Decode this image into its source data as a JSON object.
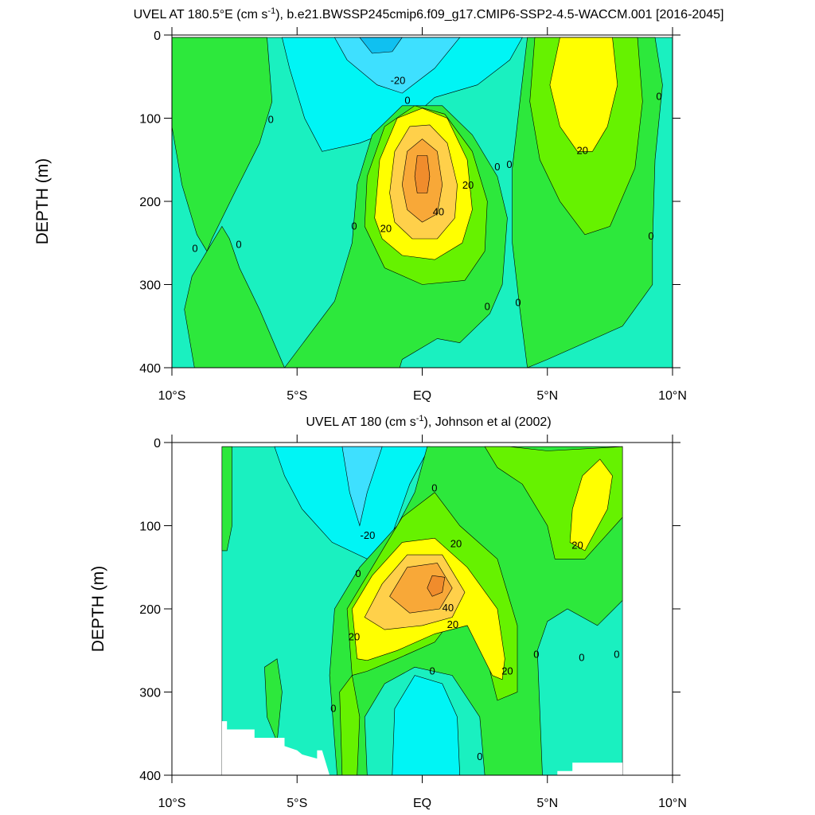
{
  "chart_data": [
    {
      "type": "contour",
      "title": [
        "UVEL AT 180.5°E (cm s",
        "-1",
        "), b.e21.BWSSP245cmip6.f09_g17.CMIP6-SSP2-4.5-WACCM.001 [2016-2045]"
      ],
      "ylabel": "DEPTH (m)",
      "xlim": [
        -10,
        10
      ],
      "ylim": [
        0,
        400
      ],
      "y_reversed": true,
      "xticks": [
        {
          "value": -10,
          "label": "10°S"
        },
        {
          "value": -5,
          "label": "5°S"
        },
        {
          "value": 0,
          "label": "EQ"
        },
        {
          "value": 5,
          "label": "5°N"
        },
        {
          "value": 10,
          "label": "10°N"
        }
      ],
      "yticks": [
        0,
        100,
        200,
        300,
        400
      ],
      "regions": [
        {
          "color": "#1af0c0",
          "lat": [
            -10,
            10,
            10,
            -10
          ],
          "depth": [
            3,
            3,
            400,
            400
          ]
        },
        {
          "color": "#2de83c",
          "lat": [
            -10,
            -6.2,
            -6.0,
            -6.5,
            -7.5,
            -8.4,
            -8.6,
            -9.0,
            -9.6,
            -10
          ],
          "depth": [
            3,
            3,
            80,
            130,
            190,
            245,
            260,
            240,
            180,
            110
          ]
        },
        {
          "color": "#2de83c",
          "lat": [
            -8.6,
            -8.0,
            -7.7,
            -7.3,
            -6.5,
            -5.5,
            -9.1,
            -9.5,
            -9.2
          ],
          "depth": [
            260,
            230,
            245,
            280,
            330,
            400,
            400,
            330,
            290
          ]
        },
        {
          "color": "#00f5f5",
          "lat": [
            -5.6,
            4.0,
            3.5,
            2.2,
            0.5,
            -0.8,
            -2.5,
            -4.0,
            -4.7,
            -5.3
          ],
          "depth": [
            3,
            3,
            30,
            60,
            75,
            110,
            130,
            140,
            100,
            40
          ]
        },
        {
          "color": "#3ee0ff",
          "lat": [
            -3.5,
            1.5,
            0.5,
            -0.8,
            -1.8,
            -3.0
          ],
          "depth": [
            3,
            3,
            40,
            70,
            60,
            30
          ]
        },
        {
          "color": "#10c0f0",
          "lat": [
            -2.5,
            -0.8,
            -1.2,
            -2.0
          ],
          "depth": [
            3,
            3,
            20,
            22
          ]
        },
        {
          "color": "#2de83c",
          "lat": [
            -5.5,
            -3.5,
            -2.8,
            -2.6,
            -2.0,
            -0.8,
            0.8,
            2.0,
            3.0,
            3.4,
            3.2,
            2.7,
            1.5,
            0.6,
            -0.8,
            -0.9
          ],
          "depth": [
            400,
            320,
            250,
            180,
            120,
            85,
            85,
            120,
            170,
            220,
            300,
            335,
            370,
            365,
            390,
            400
          ]
        },
        {
          "color": "#2de83c",
          "lat": [
            4.2,
            9.3,
            9.6,
            9.3,
            9.2,
            9.2,
            8.0,
            5.0,
            4.2,
            3.9,
            3.6,
            3.6,
            3.9
          ],
          "depth": [
            3,
            3,
            60,
            150,
            250,
            300,
            350,
            390,
            400,
            330,
            250,
            160,
            80
          ]
        },
        {
          "color": "#66f200",
          "lat": [
            4.5,
            8.6,
            8.8,
            8.5,
            7.5,
            6.5,
            5.5,
            4.7,
            4.3
          ],
          "depth": [
            3,
            3,
            80,
            160,
            230,
            240,
            200,
            150,
            80
          ]
        },
        {
          "color": "#ffff00",
          "lat": [
            5.5,
            7.6,
            7.8,
            7.4,
            6.8,
            6.2,
            5.5,
            5.1
          ],
          "depth": [
            3,
            3,
            60,
            110,
            140,
            140,
            110,
            60
          ]
        },
        {
          "color": "#66f200",
          "lat": [
            -2.3,
            -2.2,
            -1.5,
            -0.3,
            0.9,
            2.0,
            2.6,
            2.5,
            1.7,
            0,
            -1.5
          ],
          "depth": [
            230,
            170,
            110,
            85,
            95,
            140,
            200,
            260,
            295,
            300,
            280
          ]
        },
        {
          "color": "#ffff00",
          "lat": [
            -1.9,
            -1.7,
            -1.0,
            0,
            1.0,
            1.8,
            2.0,
            1.6,
            0.5,
            -0.8,
            -1.6
          ],
          "depth": [
            220,
            150,
            100,
            88,
            100,
            150,
            210,
            250,
            270,
            265,
            245
          ]
        },
        {
          "color": "#ffd04a",
          "lat": [
            -1.3,
            -1.1,
            -0.5,
            0.3,
            1.0,
            1.4,
            1.3,
            0.6,
            -0.4,
            -1.1
          ],
          "depth": [
            190,
            140,
            110,
            108,
            130,
            180,
            220,
            245,
            245,
            225
          ]
        },
        {
          "color": "#f8a838",
          "lat": [
            -0.8,
            -0.6,
            0,
            0.6,
            0.8,
            0.6,
            0,
            -0.6
          ],
          "depth": [
            180,
            140,
            125,
            140,
            180,
            215,
            225,
            210
          ]
        },
        {
          "color": "#f08c2c",
          "lat": [
            -0.3,
            -0.2,
            0.2,
            0.3,
            0.2,
            -0.2
          ],
          "depth": [
            170,
            145,
            145,
            170,
            190,
            190
          ]
        }
      ],
      "contour_labels": [
        {
          "value": 0,
          "x": -9.08,
          "y": 257
        },
        {
          "value": 0,
          "x": -7.33,
          "y": 252
        },
        {
          "value": 0,
          "x": -6.05,
          "y": 102
        },
        {
          "value": 0,
          "x": -2.72,
          "y": 230
        },
        {
          "value": 20,
          "x": -1.45,
          "y": 233
        },
        {
          "value": 40,
          "x": 0.65,
          "y": 213
        },
        {
          "value": 20,
          "x": 1.83,
          "y": 181
        },
        {
          "value": 0,
          "x": -0.59,
          "y": 79
        },
        {
          "value": -20,
          "x": -0.97,
          "y": 55
        },
        {
          "value": 0,
          "x": 3.0,
          "y": 159
        },
        {
          "value": 0,
          "x": 3.48,
          "y": 156
        },
        {
          "value": 20,
          "x": 6.4,
          "y": 139
        },
        {
          "value": 0,
          "x": 9.46,
          "y": 74
        },
        {
          "value": 0,
          "x": 9.14,
          "y": 242
        },
        {
          "value": 0,
          "x": 2.6,
          "y": 327
        },
        {
          "value": 0,
          "x": 3.83,
          "y": 322
        }
      ]
    },
    {
      "type": "contour",
      "title": [
        "UVEL AT 180 (cm s",
        "-1",
        "), Johnson et al (2002)"
      ],
      "ylabel": "DEPTH (m)",
      "xlim": [
        -10,
        10
      ],
      "ylim": [
        0,
        400
      ],
      "y_reversed": true,
      "xticks": [
        {
          "value": -10,
          "label": "10°S"
        },
        {
          "value": -5,
          "label": "5°S"
        },
        {
          "value": 0,
          "label": "EQ"
        },
        {
          "value": 5,
          "label": "5°N"
        },
        {
          "value": 10,
          "label": "10°N"
        }
      ],
      "yticks": [
        0,
        100,
        200,
        300,
        400
      ],
      "regions": [
        {
          "color": "#1af0c0",
          "lat": [
            -8,
            8,
            8,
            -8
          ],
          "depth": [
            5,
            5,
            400,
            400
          ]
        },
        {
          "color": "#00f5f5",
          "lat": [
            -5.9,
            0.3,
            -0.5,
            -1.2,
            -2.2,
            -3.6,
            -4.8,
            -5.5
          ],
          "depth": [
            5,
            5,
            50,
            110,
            140,
            120,
            80,
            40
          ]
        },
        {
          "color": "#3ee0ff",
          "lat": [
            -3.2,
            -1.6,
            -2.2,
            -2.5,
            -2.9
          ],
          "depth": [
            5,
            5,
            60,
            100,
            60
          ]
        },
        {
          "color": "#2de83c",
          "lat": [
            -8,
            -7.6,
            -7.6,
            -7.8,
            -8
          ],
          "depth": [
            5,
            5,
            100,
            130,
            130
          ]
        },
        {
          "color": "#2de83c",
          "lat": [
            -6.2,
            -6.3,
            -5.8,
            -5.6,
            -5.8
          ],
          "depth": [
            330,
            270,
            260,
            300,
            360
          ]
        },
        {
          "color": "#2de83c",
          "lat": [
            0.2,
            8,
            8,
            7,
            5.8,
            5,
            4.6,
            4.8,
            -3.4,
            -3.7,
            -3.5,
            -2.5,
            -1,
            -0.3
          ],
          "depth": [
            5,
            5,
            190,
            220,
            200,
            215,
            250,
            400,
            400,
            280,
            200,
            150,
            100,
            60
          ]
        },
        {
          "color": "#1af0c0",
          "lat": [
            -2.2,
            -2.3,
            -1.5,
            -0.3,
            1.2,
            2.3,
            2.5
          ],
          "depth": [
            400,
            330,
            290,
            270,
            280,
            330,
            400
          ]
        },
        {
          "color": "#00f5f5",
          "lat": [
            -1.2,
            -1.1,
            -0.3,
            0.8,
            1.4,
            1.5
          ],
          "depth": [
            400,
            320,
            280,
            290,
            330,
            400
          ]
        },
        {
          "color": "#66f200",
          "lat": [
            -3.2,
            -3.3,
            -2.8,
            -2.5,
            -2.6
          ],
          "depth": [
            400,
            300,
            280,
            330,
            400
          ]
        },
        {
          "color": "#66f200",
          "lat": [
            -2.8,
            -3,
            -2,
            -0.8,
            0.5,
            1.5,
            3,
            3.8,
            3.8,
            3,
            2.5,
            1.5,
            0.5,
            -1,
            -2.2
          ],
          "depth": [
            280,
            200,
            150,
            90,
            60,
            100,
            140,
            220,
            300,
            310,
            250,
            200,
            240,
            260,
            275
          ]
        },
        {
          "color": "#66f200",
          "lat": [
            2.5,
            3.5,
            5,
            8,
            8,
            6.5,
            5.3,
            5,
            4,
            3
          ],
          "depth": [
            5,
            5,
            10,
            5,
            90,
            140,
            140,
            100,
            50,
            30
          ]
        },
        {
          "color": "#ffff00",
          "lat": [
            6,
            6.4,
            7.1,
            7.6,
            7.4,
            6.5,
            5.9
          ],
          "depth": [
            80,
            40,
            20,
            40,
            80,
            130,
            120
          ]
        },
        {
          "color": "#ffff00",
          "lat": [
            -2.6,
            -2.8,
            -2,
            -0.8,
            0.5,
            1.8,
            3,
            3.3,
            3.2,
            2.8,
            1.8,
            0.5,
            -1,
            -2.2
          ],
          "depth": [
            260,
            200,
            160,
            120,
            115,
            150,
            200,
            260,
            285,
            280,
            220,
            230,
            250,
            262
          ]
        },
        {
          "color": "#ffd04a",
          "lat": [
            -2.3,
            -1.6,
            -0.6,
            0.8,
            1.7,
            1.2,
            0,
            -1.5
          ],
          "depth": [
            210,
            170,
            135,
            135,
            180,
            210,
            220,
            225
          ]
        },
        {
          "color": "#f8a838",
          "lat": [
            -1.3,
            -0.6,
            0.6,
            1.2,
            0.7,
            -0.5
          ],
          "depth": [
            185,
            150,
            145,
            175,
            200,
            205
          ]
        },
        {
          "color": "#f08c2c",
          "lat": [
            0.2,
            0.4,
            0.9,
            0.8,
            0.4
          ],
          "depth": [
            175,
            160,
            162,
            180,
            185
          ]
        },
        {
          "color": "#ffffff",
          "lat": [
            -8,
            -7.8,
            -7.8,
            -6.7,
            -6.7,
            -5.5,
            -5.5,
            -5,
            -4.8,
            -4.2,
            -4.2,
            -4,
            -3.7,
            -8
          ],
          "depth": [
            335,
            335,
            345,
            345,
            355,
            355,
            365,
            370,
            375,
            380,
            370,
            370,
            400,
            400
          ]
        },
        {
          "color": "#ffffff",
          "lat": [
            5.4,
            5.4,
            6,
            6,
            8,
            8
          ],
          "depth": [
            400,
            395,
            395,
            385,
            385,
            400
          ]
        }
      ],
      "contour_labels": [
        {
          "value": 0,
          "x": 0.49,
          "y": 55
        },
        {
          "value": -20,
          "x": -2.18,
          "y": 112
        },
        {
          "value": 20,
          "x": 1.35,
          "y": 122
        },
        {
          "value": 0,
          "x": -2.56,
          "y": 158
        },
        {
          "value": 20,
          "x": 6.2,
          "y": 124
        },
        {
          "value": 40,
          "x": 1.03,
          "y": 199
        },
        {
          "value": 20,
          "x": 1.22,
          "y": 219
        },
        {
          "value": 20,
          "x": -2.72,
          "y": 234
        },
        {
          "value": 0,
          "x": 0.4,
          "y": 275
        },
        {
          "value": 20,
          "x": 3.4,
          "y": 275
        },
        {
          "value": 0,
          "x": 4.56,
          "y": 255
        },
        {
          "value": 0,
          "x": 6.37,
          "y": 259
        },
        {
          "value": 0,
          "x": 7.77,
          "y": 255
        },
        {
          "value": 0,
          "x": -3.55,
          "y": 320
        },
        {
          "value": 0,
          "x": 2.3,
          "y": 378
        }
      ]
    }
  ]
}
